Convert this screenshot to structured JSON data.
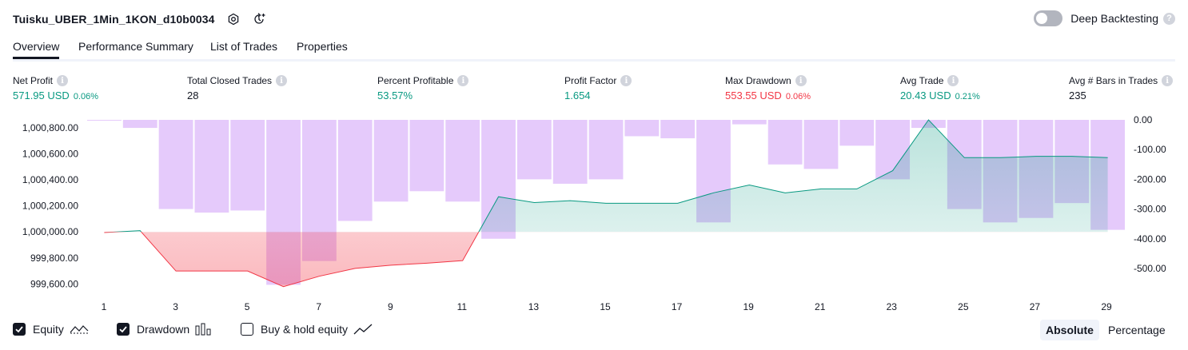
{
  "header": {
    "title": "Tuisku_UBER_1Min_1KON_d10b0034"
  },
  "deep_backtesting": {
    "label": "Deep Backtesting",
    "enabled": false
  },
  "tabs": [
    {
      "label": "Overview",
      "active": true
    },
    {
      "label": "Performance Summary",
      "active": false
    },
    {
      "label": "List of Trades",
      "active": false
    },
    {
      "label": "Properties",
      "active": false
    }
  ],
  "metrics": [
    {
      "label": "Net Profit",
      "value": "571.95 USD",
      "pct": "0.06%",
      "color": "green"
    },
    {
      "label": "Total Closed Trades",
      "value": "28",
      "pct": "",
      "color": "dark"
    },
    {
      "label": "Percent Profitable",
      "value": "53.57%",
      "pct": "",
      "color": "green"
    },
    {
      "label": "Profit Factor",
      "value": "1.654",
      "pct": "",
      "color": "green"
    },
    {
      "label": "Max Drawdown",
      "value": "553.55 USD",
      "pct": "0.06%",
      "color": "red"
    },
    {
      "label": "Avg Trade",
      "value": "20.43 USD",
      "pct": "0.21%",
      "color": "green"
    },
    {
      "label": "Avg # Bars in Trades",
      "value": "235",
      "pct": "",
      "color": "dark"
    }
  ],
  "legend": {
    "equity": {
      "label": "Equity",
      "checked": true
    },
    "drawdown": {
      "label": "Drawdown",
      "checked": true
    },
    "buyhold": {
      "label": "Buy & hold equity",
      "checked": false
    }
  },
  "modes": {
    "absolute": "Absolute",
    "percentage": "Percentage",
    "active": "absolute"
  },
  "colors": {
    "positive": "#089981",
    "negative": "#f23645",
    "drawdown_bar": "#e1c3fb",
    "equity_fill_pos": "#d2efe8",
    "equity_fill_neg": "#fcc6cb"
  },
  "chart_data": {
    "type": "line",
    "x": [
      1,
      2,
      3,
      4,
      5,
      6,
      7,
      8,
      9,
      10,
      11,
      12,
      13,
      14,
      15,
      16,
      17,
      18,
      19,
      20,
      21,
      22,
      23,
      24,
      25,
      26,
      27,
      28,
      29
    ],
    "x_tick_labels": [
      "1",
      "3",
      "5",
      "7",
      "9",
      "11",
      "13",
      "15",
      "17",
      "19",
      "21",
      "23",
      "25",
      "27",
      "29"
    ],
    "left_axis": {
      "ticks": [
        "1,000,800.00",
        "1,000,600.00",
        "1,000,400.00",
        "1,000,200.00",
        "1,000,000.00",
        "999,800.00",
        "999,600.00"
      ],
      "ylim": [
        999560,
        1000860
      ]
    },
    "right_axis": {
      "ticks": [
        "0.00",
        "-100.00",
        "-200.00",
        "-300.00",
        "-400.00",
        "-500.00"
      ],
      "ylim": [
        -570,
        0
      ]
    },
    "baseline": 1000000,
    "series": [
      {
        "name": "Equity",
        "axis": "left",
        "values": [
          999995,
          1000010,
          999700,
          999700,
          999700,
          999580,
          999660,
          999720,
          999745,
          999760,
          999780,
          1000270,
          1000225,
          1000240,
          1000220,
          1000220,
          1000220,
          1000300,
          1000360,
          1000300,
          1000330,
          1000330,
          1000470,
          1000860,
          1000570,
          1000570,
          1000580,
          1000580,
          1000570
        ]
      },
      {
        "name": "Drawdown",
        "axis": "right",
        "type": "bar",
        "values": [
          -2,
          -27,
          -300,
          -312,
          -305,
          -555,
          -475,
          -340,
          -275,
          -240,
          -275,
          -400,
          -200,
          -215,
          -200,
          -55,
          -62,
          -345,
          -15,
          -150,
          -165,
          -87,
          -200,
          -27,
          -300,
          -345,
          -330,
          -280,
          -370
        ]
      }
    ]
  }
}
